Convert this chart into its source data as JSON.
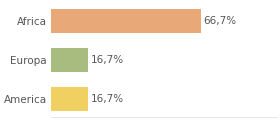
{
  "categories": [
    "Africa",
    "Europa",
    "America"
  ],
  "values": [
    66.7,
    16.7,
    16.7
  ],
  "bar_colors": [
    "#e8a878",
    "#a8bc80",
    "#f0d060"
  ],
  "labels": [
    "66,7%",
    "16,7%",
    "16,7%"
  ],
  "xlim": [
    0,
    100
  ],
  "background_color": "#ffffff",
  "bar_height": 0.62,
  "label_fontsize": 7.5,
  "tick_fontsize": 7.5,
  "grid_color": "#dddddd"
}
